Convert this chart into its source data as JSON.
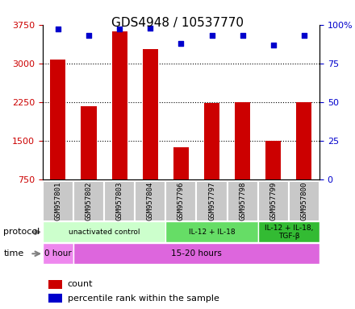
{
  "title": "GDS4948 / 10537770",
  "samples": [
    "GSM957801",
    "GSM957802",
    "GSM957803",
    "GSM957804",
    "GSM957796",
    "GSM957797",
    "GSM957798",
    "GSM957799",
    "GSM957800"
  ],
  "counts": [
    3075,
    2175,
    3625,
    3275,
    1375,
    2225,
    2250,
    1500,
    2250
  ],
  "percentile_ranks": [
    97,
    93,
    97,
    98,
    88,
    93,
    93,
    87,
    93
  ],
  "ylim_left": [
    750,
    3750
  ],
  "ylim_right": [
    0,
    100
  ],
  "yticks_left": [
    750,
    1500,
    2250,
    3000,
    3750
  ],
  "yticks_right": [
    0,
    25,
    50,
    75,
    100
  ],
  "bar_color": "#cc0000",
  "scatter_color": "#0000cc",
  "protocol_groups": [
    {
      "label": "unactivated control",
      "start": 0,
      "end": 4,
      "color": "#ccffcc"
    },
    {
      "label": "IL-12 + IL-18",
      "start": 4,
      "end": 7,
      "color": "#66dd66"
    },
    {
      "label": "IL-12 + IL-18,\nTGF-β",
      "start": 7,
      "end": 9,
      "color": "#33bb33"
    }
  ],
  "time_groups": [
    {
      "label": "0 hour",
      "start": 0,
      "end": 1,
      "color": "#ee88ee"
    },
    {
      "label": "15-20 hours",
      "start": 1,
      "end": 9,
      "color": "#dd66dd"
    }
  ],
  "legend_items": [
    {
      "label": "count",
      "color": "#cc0000"
    },
    {
      "label": "percentile rank within the sample",
      "color": "#0000cc"
    }
  ],
  "title_fontsize": 11,
  "tick_fontsize": 8,
  "label_fontsize": 9
}
